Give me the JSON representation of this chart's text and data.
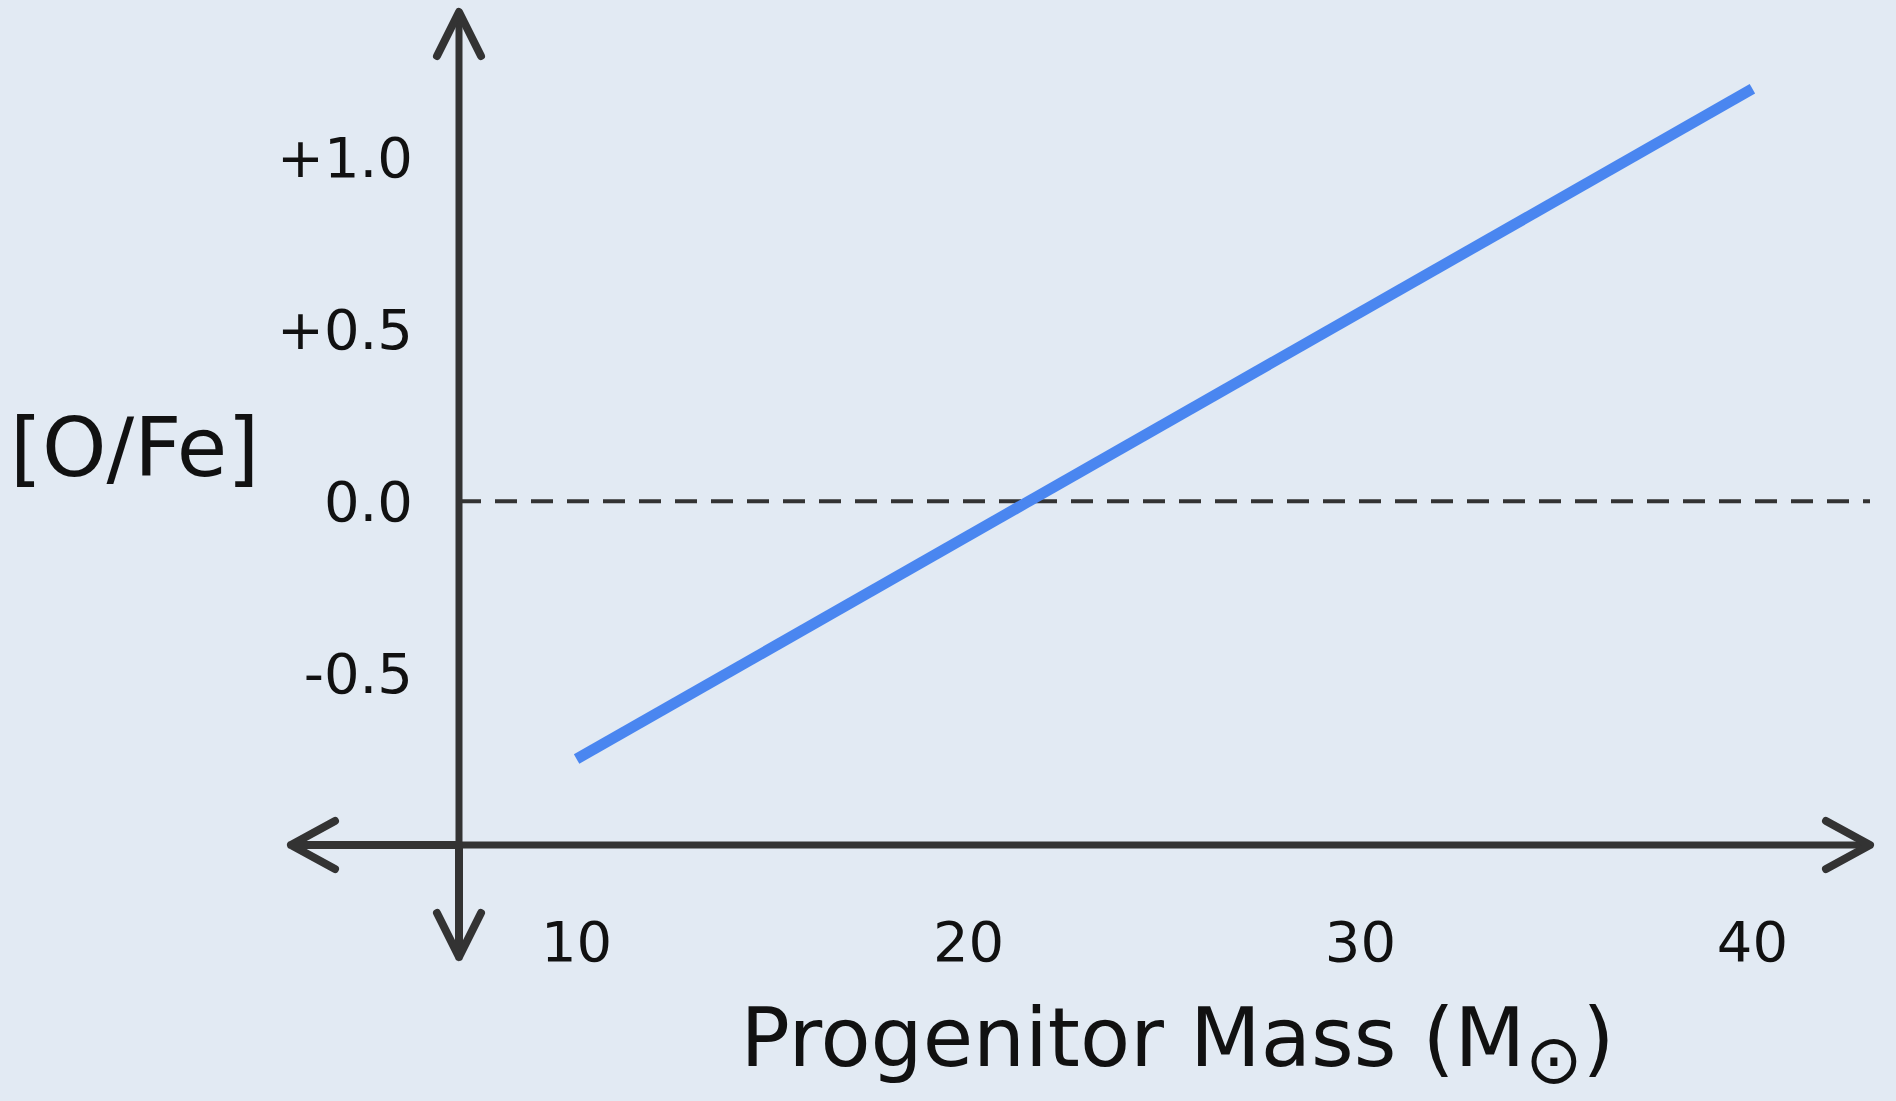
{
  "chart_data": {
    "type": "line",
    "xlabel": "Progenitor Mass (M$_{⊙}$)",
    "ylabel": "[O/Fe]",
    "xlim": [
      7,
      43
    ],
    "xticks": [
      10,
      20,
      30,
      40
    ],
    "ylim": [
      -1,
      1.4
    ],
    "yticks": [
      {
        "value": -0.5,
        "label": "-0.5"
      },
      {
        "value": 0,
        "label": "0.0"
      },
      {
        "value": 0.5,
        "label": "+0.5"
      },
      {
        "value": 1,
        "label": "+1.0"
      }
    ],
    "series": [
      {
        "color": "#4a86f0",
        "x": [
          10,
          40
        ],
        "values": [
          -0.75,
          1.2
        ]
      }
    ],
    "ref_lines": [
      {
        "axis": "y",
        "value": 0,
        "color": "#333333",
        "line_style": "dashed"
      }
    ],
    "grid": false,
    "legend": false,
    "marker": "none",
    "line_style": "solid"
  }
}
